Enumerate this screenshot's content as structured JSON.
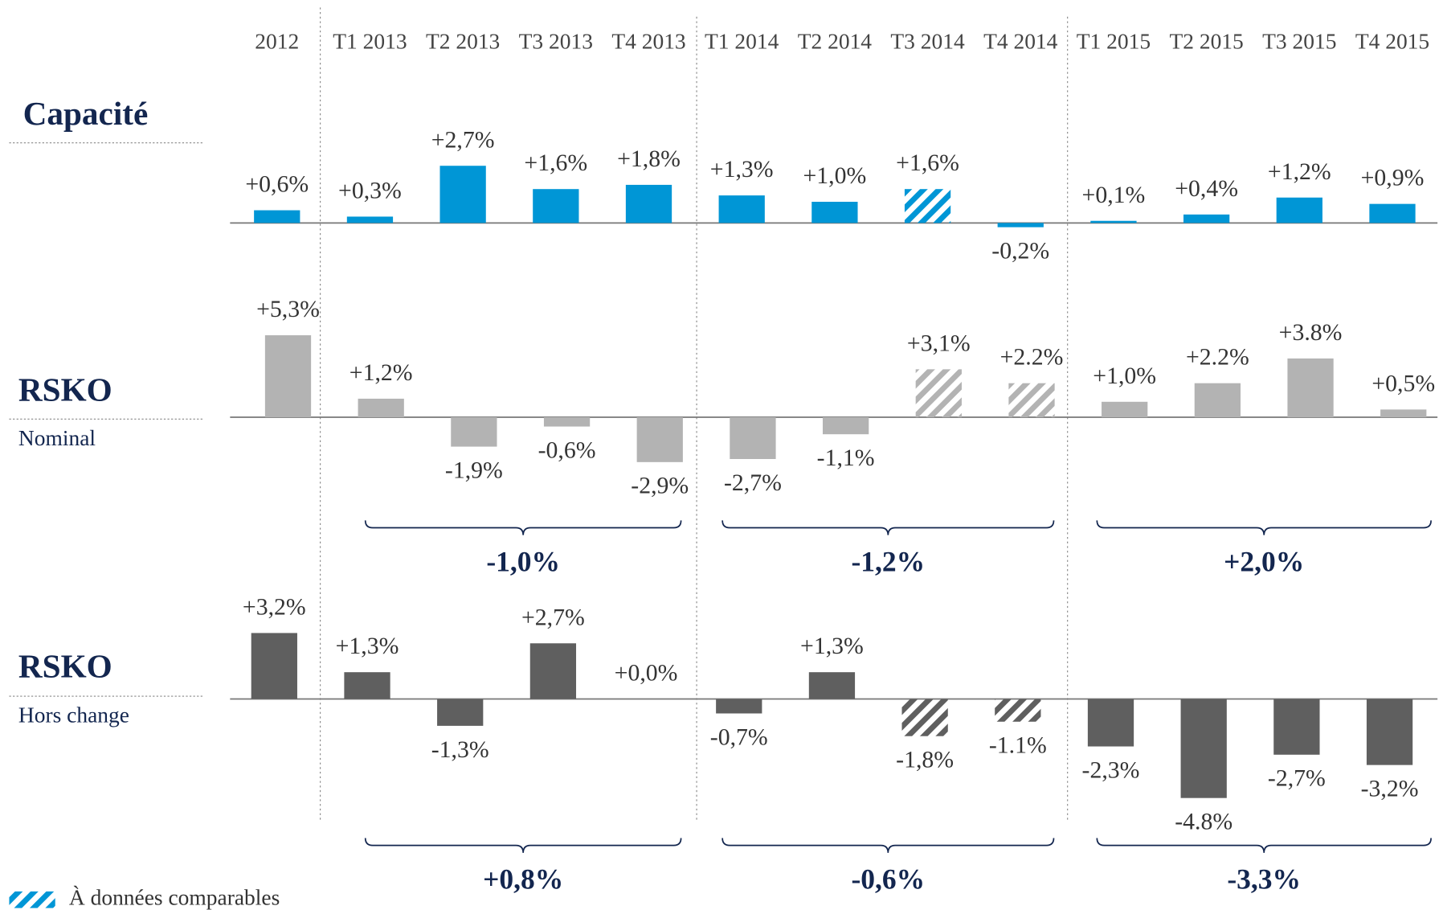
{
  "chart_data": {
    "type": "bar",
    "categories": [
      "2012",
      "T1 2013",
      "T2 2013",
      "T3 2013",
      "T4 2013",
      "T1 2014",
      "T2 2014",
      "T3 2014",
      "T4 2014",
      "T1 2015",
      "T2 2015",
      "T3 2015",
      "T4 2015"
    ],
    "series": [
      {
        "name": "Capacité",
        "color": "#0096d6",
        "values": [
          0.6,
          0.3,
          2.7,
          1.6,
          1.8,
          1.3,
          1.0,
          1.6,
          -0.2,
          0.1,
          0.4,
          1.2,
          0.9
        ],
        "value_labels": [
          "+0,6%",
          "+0,3%",
          "+2,7%",
          "+1,6%",
          "+1,8%",
          "+1,3%",
          "+1,0%",
          "+1,6%",
          "-0,2%",
          "+0,1%",
          "+0,4%",
          "+1,2%",
          "+0,9%"
        ],
        "comparable": [
          false,
          false,
          false,
          false,
          false,
          false,
          false,
          true,
          false,
          false,
          false,
          false,
          false
        ]
      },
      {
        "name": "RSKO",
        "subtitle": "Nominal",
        "color": "#b3b3b3",
        "values": [
          5.3,
          1.2,
          -1.9,
          -0.6,
          -2.9,
          -2.7,
          -1.1,
          3.1,
          2.2,
          1.0,
          2.2,
          3.8,
          0.5
        ],
        "value_labels": [
          "+5,3%",
          "+1,2%",
          "-1,9%",
          "-0,6%",
          "-2,9%",
          "-2,7%",
          "-1,1%",
          "+3,1%",
          "+2.2%",
          "+1,0%",
          "+2.2%",
          "+3.8%",
          "+0,5%"
        ],
        "comparable": [
          false,
          false,
          false,
          false,
          false,
          false,
          false,
          true,
          true,
          false,
          false,
          false,
          false
        ],
        "summary": [
          {
            "value": -1.0,
            "label": "-1,0%"
          },
          {
            "value": -1.2,
            "label": "-1,2%"
          },
          {
            "value": 2.0,
            "label": "+2,0%"
          }
        ]
      },
      {
        "name": "RSKO",
        "subtitle": "Hors change",
        "color": "#5f5f5f",
        "values": [
          3.2,
          1.3,
          -1.3,
          2.7,
          0.0,
          -0.7,
          1.3,
          -1.8,
          -1.1,
          -2.3,
          -4.8,
          -2.7,
          -3.2
        ],
        "value_labels": [
          "+3,2%",
          "+1,3%",
          "-1,3%",
          "+2,7%",
          "+0,0%",
          "-0,7%",
          "+1,3%",
          "-1,8%",
          "-1.1%",
          "-2,3%",
          "-4.8%",
          "-2,7%",
          "-3,2%"
        ],
        "comparable": [
          false,
          false,
          false,
          false,
          false,
          false,
          false,
          true,
          true,
          false,
          false,
          false,
          false
        ],
        "summary": [
          {
            "value": 0.8,
            "label": "+0,8%"
          },
          {
            "value": -0.6,
            "label": "-0,6%"
          },
          {
            "value": -3.3,
            "label": "-3,3%"
          }
        ]
      }
    ],
    "legend": "À données comparables"
  }
}
